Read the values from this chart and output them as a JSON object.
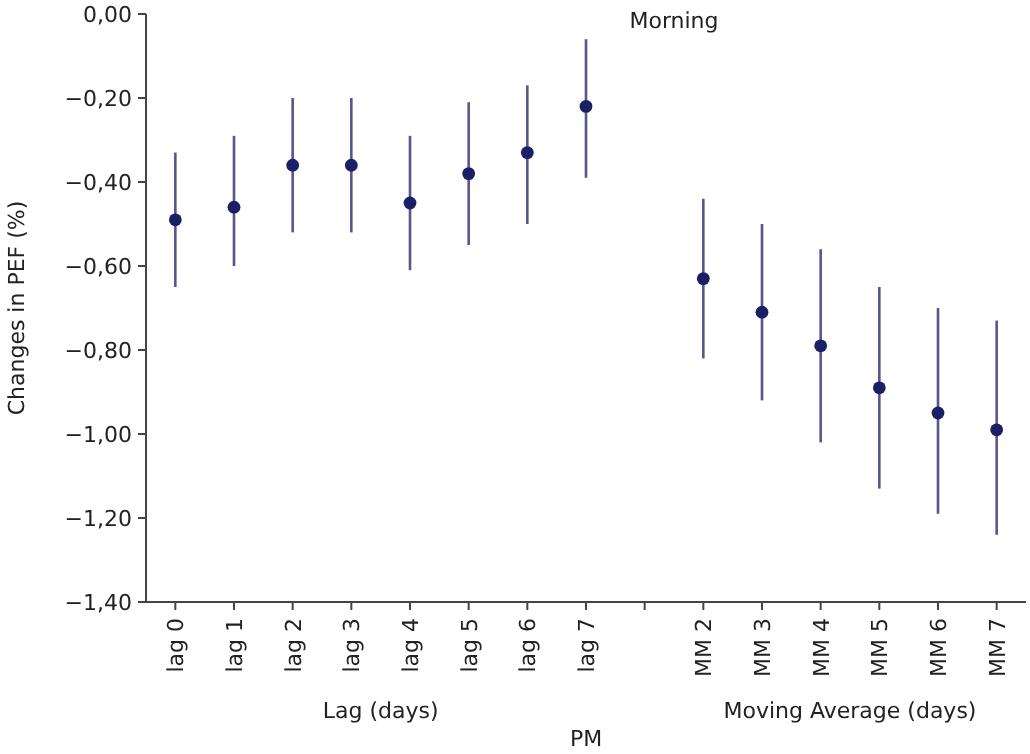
{
  "chart_data": {
    "type": "scatter",
    "title": "Morning",
    "xlabel": "PM",
    "ylabel": "Changes in PEF (%)",
    "annotations": [
      "Lag (days)",
      "Moving Average (days)"
    ],
    "categories": [
      "lag 0",
      "lag 1",
      "lag 2",
      "lag 3",
      "lag 4",
      "lag 5",
      "lag 6",
      "lag 7",
      null,
      "MM 2",
      "MM 3",
      "MM 4",
      "MM 5",
      "MM 6",
      "MM 7"
    ],
    "series": [
      {
        "color": "#1c1f66",
        "values": [
          -0.49,
          -0.46,
          -0.36,
          -0.36,
          -0.45,
          -0.38,
          -0.33,
          -0.22,
          null,
          -0.63,
          -0.71,
          -0.79,
          -0.89,
          -0.95,
          -0.99
        ],
        "errors": [
          [
            -0.65,
            -0.33
          ],
          [
            -0.6,
            -0.29
          ],
          [
            -0.52,
            -0.2
          ],
          [
            -0.52,
            -0.2
          ],
          [
            -0.61,
            -0.29
          ],
          [
            -0.55,
            -0.21
          ],
          [
            -0.5,
            -0.17
          ],
          [
            -0.39,
            -0.06
          ],
          null,
          [
            -0.82,
            -0.44
          ],
          [
            -0.92,
            -0.5
          ],
          [
            -1.02,
            -0.56
          ],
          [
            -1.13,
            -0.65
          ],
          [
            -1.19,
            -0.7
          ],
          [
            -1.24,
            -0.73
          ]
        ]
      }
    ],
    "ylim": [
      -1.4,
      0
    ],
    "yticks": [
      {
        "value": 0,
        "label": "0,00"
      },
      {
        "value": -0.2,
        "label": "−0,20"
      },
      {
        "value": -0.4,
        "label": "−0,40"
      },
      {
        "value": -0.6,
        "label": "−0,60"
      },
      {
        "value": -0.8,
        "label": "−0,80"
      },
      {
        "value": -1,
        "label": "−1,00"
      },
      {
        "value": -1.2,
        "label": "−1,20"
      },
      {
        "value": -1.4,
        "label": "−1,40"
      }
    ],
    "grid": false,
    "marker": "circle"
  }
}
